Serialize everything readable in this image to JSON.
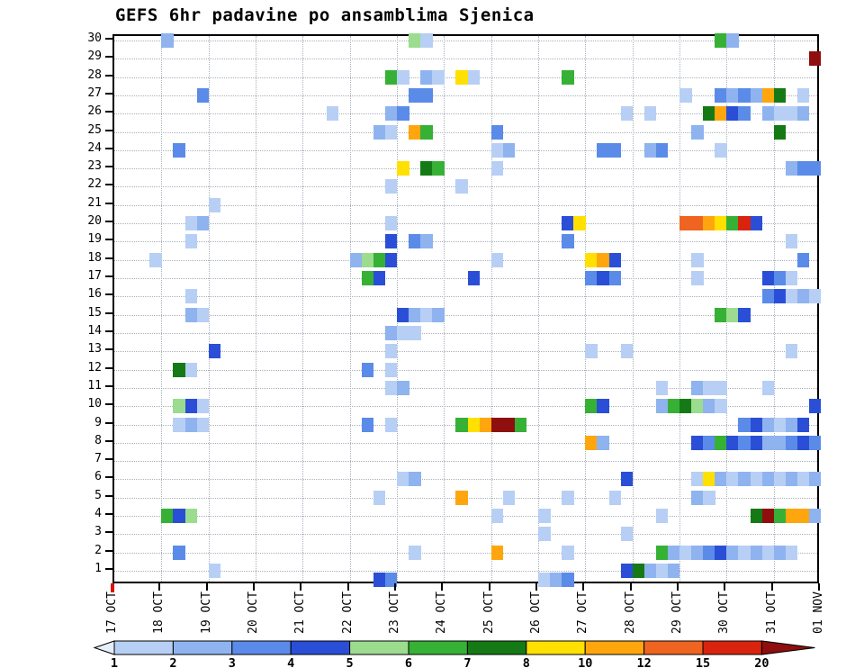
{
  "title": "GEFS 6hr padavine po ansamblima Sjenica",
  "chart_data": {
    "type": "heatmap",
    "title": "GEFS 6hr padavine po ansamblima Sjenica",
    "xlabel": "",
    "ylabel": "",
    "grid": "dotted",
    "legend_position": "bottom",
    "x_tick_labels": [
      "17 OCT",
      "18 OCT",
      "19 OCT",
      "20 OCT",
      "21 OCT",
      "22 OCT",
      "23 OCT",
      "24 OCT",
      "25 OCT",
      "26 OCT",
      "27 OCT",
      "28 OCT",
      "29 OCT",
      "30 OCT",
      "31 OCT",
      "01 NOV"
    ],
    "slots_per_day": 4,
    "time_slots": 60,
    "y_tick_labels": [
      "1",
      "2",
      "3",
      "4",
      "5",
      "6",
      "7",
      "8",
      "9",
      "10",
      "11",
      "12",
      "13",
      "14",
      "15",
      "16",
      "17",
      "18",
      "19",
      "20",
      "21",
      "22",
      "23",
      "24",
      "25",
      "26",
      "27",
      "28",
      "29",
      "30"
    ],
    "legend": {
      "levels": [
        "1",
        "2",
        "3",
        "4",
        "5",
        "6",
        "7",
        "8",
        "10",
        "12",
        "15",
        "20"
      ],
      "colors": [
        "#e6eefb",
        "#b7cff4",
        "#8fb3ef",
        "#5b8be9",
        "#2a4fd6",
        "#9bdc8f",
        "#36b136",
        "#157a15",
        "#ffe000",
        "#ffa60e",
        "#ef6420",
        "#d9230e",
        "#8f0e0e"
      ]
    },
    "cells": [
      [
        30,
        4,
        2
      ],
      [
        30,
        25,
        5
      ],
      [
        30,
        26,
        1
      ],
      [
        30,
        51,
        6
      ],
      [
        30,
        52,
        2
      ],
      [
        29,
        59,
        20
      ],
      [
        28,
        23,
        6
      ],
      [
        28,
        24,
        1
      ],
      [
        28,
        26,
        2
      ],
      [
        28,
        27,
        1
      ],
      [
        28,
        29,
        8
      ],
      [
        28,
        30,
        1
      ],
      [
        28,
        38,
        6
      ],
      [
        27,
        7,
        3
      ],
      [
        27,
        25,
        3
      ],
      [
        27,
        26,
        3
      ],
      [
        27,
        48,
        1
      ],
      [
        27,
        51,
        3
      ],
      [
        27,
        52,
        2
      ],
      [
        27,
        53,
        3
      ],
      [
        27,
        54,
        2
      ],
      [
        27,
        55,
        10
      ],
      [
        27,
        56,
        7
      ],
      [
        27,
        58,
        1
      ],
      [
        26,
        18,
        1
      ],
      [
        26,
        23,
        2
      ],
      [
        26,
        24,
        3
      ],
      [
        26,
        43,
        1
      ],
      [
        26,
        45,
        1
      ],
      [
        26,
        50,
        7
      ],
      [
        26,
        51,
        10
      ],
      [
        26,
        52,
        4
      ],
      [
        26,
        53,
        3
      ],
      [
        26,
        55,
        2
      ],
      [
        26,
        56,
        1
      ],
      [
        26,
        57,
        1
      ],
      [
        26,
        58,
        2
      ],
      [
        25,
        22,
        2
      ],
      [
        25,
        23,
        1
      ],
      [
        25,
        25,
        10
      ],
      [
        25,
        26,
        6
      ],
      [
        25,
        32,
        3
      ],
      [
        25,
        49,
        2
      ],
      [
        25,
        56,
        7
      ],
      [
        24,
        5,
        3
      ],
      [
        24,
        32,
        1
      ],
      [
        24,
        33,
        2
      ],
      [
        24,
        41,
        3
      ],
      [
        24,
        42,
        3
      ],
      [
        24,
        45,
        2
      ],
      [
        24,
        46,
        3
      ],
      [
        24,
        51,
        1
      ],
      [
        23,
        24,
        8
      ],
      [
        23,
        26,
        7
      ],
      [
        23,
        27,
        6
      ],
      [
        23,
        32,
        1
      ],
      [
        23,
        57,
        2
      ],
      [
        23,
        58,
        3
      ],
      [
        23,
        59,
        3
      ],
      [
        22,
        23,
        1
      ],
      [
        22,
        29,
        1
      ],
      [
        21,
        8,
        1
      ],
      [
        20,
        6,
        1
      ],
      [
        20,
        7,
        2
      ],
      [
        20,
        23,
        1
      ],
      [
        20,
        38,
        4
      ],
      [
        20,
        39,
        8
      ],
      [
        20,
        48,
        12
      ],
      [
        20,
        49,
        12
      ],
      [
        20,
        50,
        10
      ],
      [
        20,
        51,
        8
      ],
      [
        20,
        52,
        6
      ],
      [
        20,
        53,
        15
      ],
      [
        20,
        54,
        4
      ],
      [
        19,
        6,
        1
      ],
      [
        19,
        23,
        4
      ],
      [
        19,
        25,
        3
      ],
      [
        19,
        26,
        2
      ],
      [
        19,
        38,
        3
      ],
      [
        19,
        57,
        1
      ],
      [
        18,
        3,
        1
      ],
      [
        18,
        20,
        2
      ],
      [
        18,
        21,
        5
      ],
      [
        18,
        22,
        6
      ],
      [
        18,
        23,
        4
      ],
      [
        18,
        32,
        1
      ],
      [
        18,
        40,
        8
      ],
      [
        18,
        41,
        10
      ],
      [
        18,
        42,
        4
      ],
      [
        18,
        49,
        1
      ],
      [
        18,
        58,
        3
      ],
      [
        17,
        21,
        6
      ],
      [
        17,
        22,
        4
      ],
      [
        17,
        30,
        4
      ],
      [
        17,
        40,
        3
      ],
      [
        17,
        41,
        4
      ],
      [
        17,
        42,
        3
      ],
      [
        17,
        49,
        1
      ],
      [
        17,
        55,
        4
      ],
      [
        17,
        56,
        3
      ],
      [
        17,
        57,
        1
      ],
      [
        16,
        6,
        1
      ],
      [
        16,
        55,
        3
      ],
      [
        16,
        56,
        4
      ],
      [
        16,
        57,
        1
      ],
      [
        16,
        58,
        2
      ],
      [
        16,
        59,
        1
      ],
      [
        15,
        6,
        2
      ],
      [
        15,
        7,
        1
      ],
      [
        15,
        24,
        4
      ],
      [
        15,
        25,
        2
      ],
      [
        15,
        26,
        1
      ],
      [
        15,
        27,
        2
      ],
      [
        15,
        51,
        6
      ],
      [
        15,
        52,
        5
      ],
      [
        15,
        53,
        4
      ],
      [
        14,
        23,
        2
      ],
      [
        14,
        24,
        1
      ],
      [
        14,
        25,
        1
      ],
      [
        13,
        8,
        4
      ],
      [
        13,
        23,
        1
      ],
      [
        13,
        40,
        1
      ],
      [
        13,
        43,
        1
      ],
      [
        13,
        57,
        1
      ],
      [
        12,
        5,
        7
      ],
      [
        12,
        6,
        1
      ],
      [
        12,
        21,
        3
      ],
      [
        12,
        23,
        1
      ],
      [
        11,
        23,
        1
      ],
      [
        11,
        24,
        2
      ],
      [
        11,
        46,
        1
      ],
      [
        11,
        49,
        2
      ],
      [
        11,
        50,
        1
      ],
      [
        11,
        51,
        1
      ],
      [
        11,
        55,
        1
      ],
      [
        10,
        5,
        5
      ],
      [
        10,
        6,
        4
      ],
      [
        10,
        7,
        1
      ],
      [
        10,
        40,
        6
      ],
      [
        10,
        41,
        4
      ],
      [
        10,
        46,
        2
      ],
      [
        10,
        47,
        6
      ],
      [
        10,
        48,
        7
      ],
      [
        10,
        49,
        5
      ],
      [
        10,
        50,
        2
      ],
      [
        10,
        51,
        1
      ],
      [
        10,
        59,
        4
      ],
      [
        9,
        5,
        1
      ],
      [
        9,
        6,
        2
      ],
      [
        9,
        7,
        1
      ],
      [
        9,
        21,
        3
      ],
      [
        9,
        23,
        1
      ],
      [
        9,
        29,
        6
      ],
      [
        9,
        30,
        8
      ],
      [
        9,
        31,
        10
      ],
      [
        9,
        32,
        20
      ],
      [
        9,
        33,
        20
      ],
      [
        9,
        34,
        6
      ],
      [
        9,
        53,
        3
      ],
      [
        9,
        54,
        4
      ],
      [
        9,
        55,
        2
      ],
      [
        9,
        56,
        1
      ],
      [
        9,
        57,
        2
      ],
      [
        9,
        58,
        4
      ],
      [
        8,
        40,
        10
      ],
      [
        8,
        41,
        2
      ],
      [
        8,
        49,
        4
      ],
      [
        8,
        50,
        3
      ],
      [
        8,
        51,
        6
      ],
      [
        8,
        52,
        4
      ],
      [
        8,
        53,
        3
      ],
      [
        8,
        54,
        4
      ],
      [
        8,
        55,
        2
      ],
      [
        8,
        56,
        2
      ],
      [
        8,
        57,
        3
      ],
      [
        8,
        58,
        4
      ],
      [
        8,
        59,
        3
      ],
      [
        6,
        24,
        1
      ],
      [
        6,
        25,
        2
      ],
      [
        6,
        43,
        4
      ],
      [
        6,
        49,
        1
      ],
      [
        6,
        50,
        8
      ],
      [
        6,
        51,
        2
      ],
      [
        6,
        52,
        1
      ],
      [
        6,
        53,
        2
      ],
      [
        6,
        54,
        1
      ],
      [
        6,
        55,
        2
      ],
      [
        6,
        56,
        1
      ],
      [
        6,
        57,
        2
      ],
      [
        6,
        58,
        1
      ],
      [
        6,
        59,
        2
      ],
      [
        5,
        22,
        1
      ],
      [
        5,
        29,
        10
      ],
      [
        5,
        33,
        1
      ],
      [
        5,
        38,
        1
      ],
      [
        5,
        42,
        1
      ],
      [
        5,
        49,
        2
      ],
      [
        5,
        50,
        1
      ],
      [
        4,
        4,
        6
      ],
      [
        4,
        5,
        4
      ],
      [
        4,
        6,
        5
      ],
      [
        4,
        32,
        1
      ],
      [
        4,
        36,
        1
      ],
      [
        4,
        46,
        1
      ],
      [
        4,
        54,
        7
      ],
      [
        4,
        55,
        20
      ],
      [
        4,
        56,
        6
      ],
      [
        4,
        57,
        10
      ],
      [
        4,
        58,
        10
      ],
      [
        4,
        59,
        2
      ],
      [
        3,
        36,
        1
      ],
      [
        3,
        43,
        1
      ],
      [
        2,
        5,
        3
      ],
      [
        2,
        25,
        1
      ],
      [
        2,
        32,
        10
      ],
      [
        2,
        38,
        1
      ],
      [
        2,
        46,
        6
      ],
      [
        2,
        47,
        2
      ],
      [
        2,
        48,
        1
      ],
      [
        2,
        49,
        2
      ],
      [
        2,
        50,
        3
      ],
      [
        2,
        51,
        4
      ],
      [
        2,
        52,
        2
      ],
      [
        2,
        53,
        1
      ],
      [
        2,
        54,
        2
      ],
      [
        2,
        55,
        1
      ],
      [
        2,
        56,
        2
      ],
      [
        2,
        57,
        1
      ],
      [
        1,
        8,
        1
      ],
      [
        1,
        43,
        4
      ],
      [
        1,
        44,
        7
      ],
      [
        1,
        45,
        2
      ],
      [
        1,
        46,
        1
      ],
      [
        1,
        47,
        2
      ],
      [
        0,
        22,
        4
      ],
      [
        0,
        23,
        3
      ],
      [
        0,
        36,
        1
      ],
      [
        0,
        37,
        2
      ],
      [
        0,
        38,
        3
      ]
    ]
  }
}
